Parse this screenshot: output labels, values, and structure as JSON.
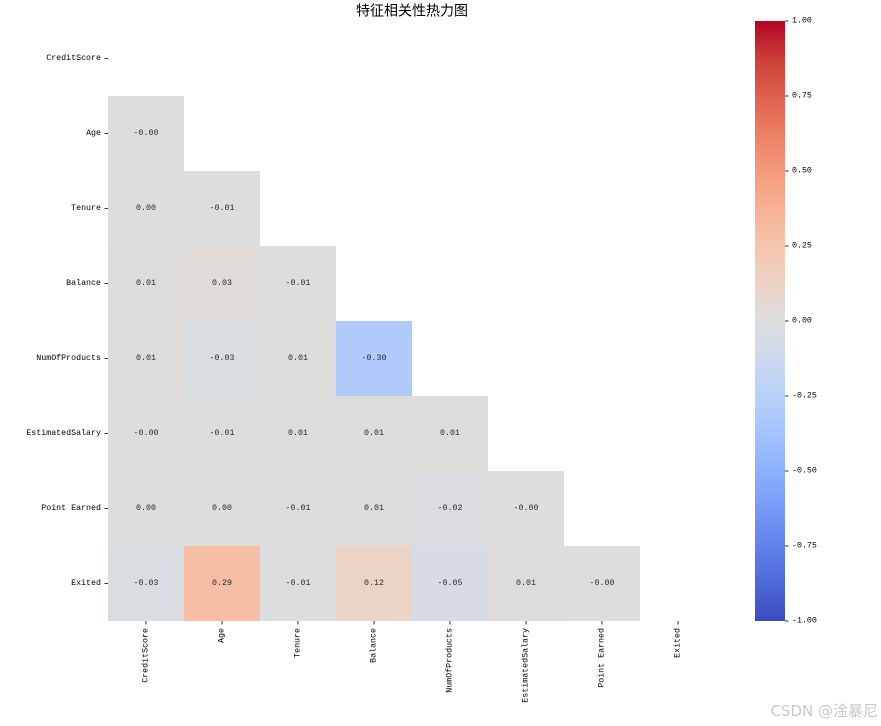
{
  "chart_data": {
    "type": "heatmap",
    "title": "特征相关性热力图",
    "x_labels": [
      "CreditScore",
      "Age",
      "Tenure",
      "Balance",
      "NumOfProducts",
      "EstimatedSalary",
      "Point Earned",
      "Exited"
    ],
    "y_labels": [
      "CreditScore",
      "Age",
      "Tenure",
      "Balance",
      "NumOfProducts",
      "EstimatedSalary",
      "Point Earned",
      "Exited"
    ],
    "values": [
      [
        null,
        null,
        null,
        null,
        null,
        null,
        null,
        null
      ],
      [
        -0.0,
        null,
        null,
        null,
        null,
        null,
        null,
        null
      ],
      [
        0.0,
        -0.01,
        null,
        null,
        null,
        null,
        null,
        null
      ],
      [
        0.01,
        0.03,
        -0.01,
        null,
        null,
        null,
        null,
        null
      ],
      [
        0.01,
        -0.03,
        0.01,
        -0.3,
        null,
        null,
        null,
        null
      ],
      [
        -0.0,
        -0.01,
        0.01,
        0.01,
        0.01,
        null,
        null,
        null
      ],
      [
        0.0,
        0.0,
        -0.01,
        0.01,
        -0.02,
        -0.0,
        null,
        null
      ],
      [
        -0.03,
        0.29,
        -0.01,
        0.12,
        -0.05,
        0.01,
        -0.0,
        null
      ]
    ],
    "annotations": [
      [
        null,
        null,
        null,
        null,
        null,
        null,
        null,
        null
      ],
      [
        "-0.00",
        null,
        null,
        null,
        null,
        null,
        null,
        null
      ],
      [
        "0.00",
        "-0.01",
        null,
        null,
        null,
        null,
        null,
        null
      ],
      [
        "0.01",
        "0.03",
        "-0.01",
        null,
        null,
        null,
        null,
        null
      ],
      [
        "0.01",
        "-0.03",
        "0.01",
        "-0.30",
        null,
        null,
        null,
        null
      ],
      [
        "-0.00",
        "-0.01",
        "0.01",
        "0.01",
        "0.01",
        null,
        null,
        null
      ],
      [
        "0.00",
        "0.00",
        "-0.01",
        "0.01",
        "-0.02",
        "-0.00",
        null,
        null
      ],
      [
        "-0.03",
        "0.29",
        "-0.01",
        "0.12",
        "-0.05",
        "0.01",
        "-0.00",
        null
      ]
    ],
    "colormap": "coolwarm",
    "vmin": -1,
    "vmax": 1,
    "colorbar": {
      "tick_labels": [
        "1.00",
        "0.75",
        "0.50",
        "0.25",
        "0.00",
        "-0.25",
        "-0.50",
        "-0.75",
        "-1.00"
      ]
    }
  },
  "watermark": {
    "text": "CSDN @淦暴尼"
  }
}
